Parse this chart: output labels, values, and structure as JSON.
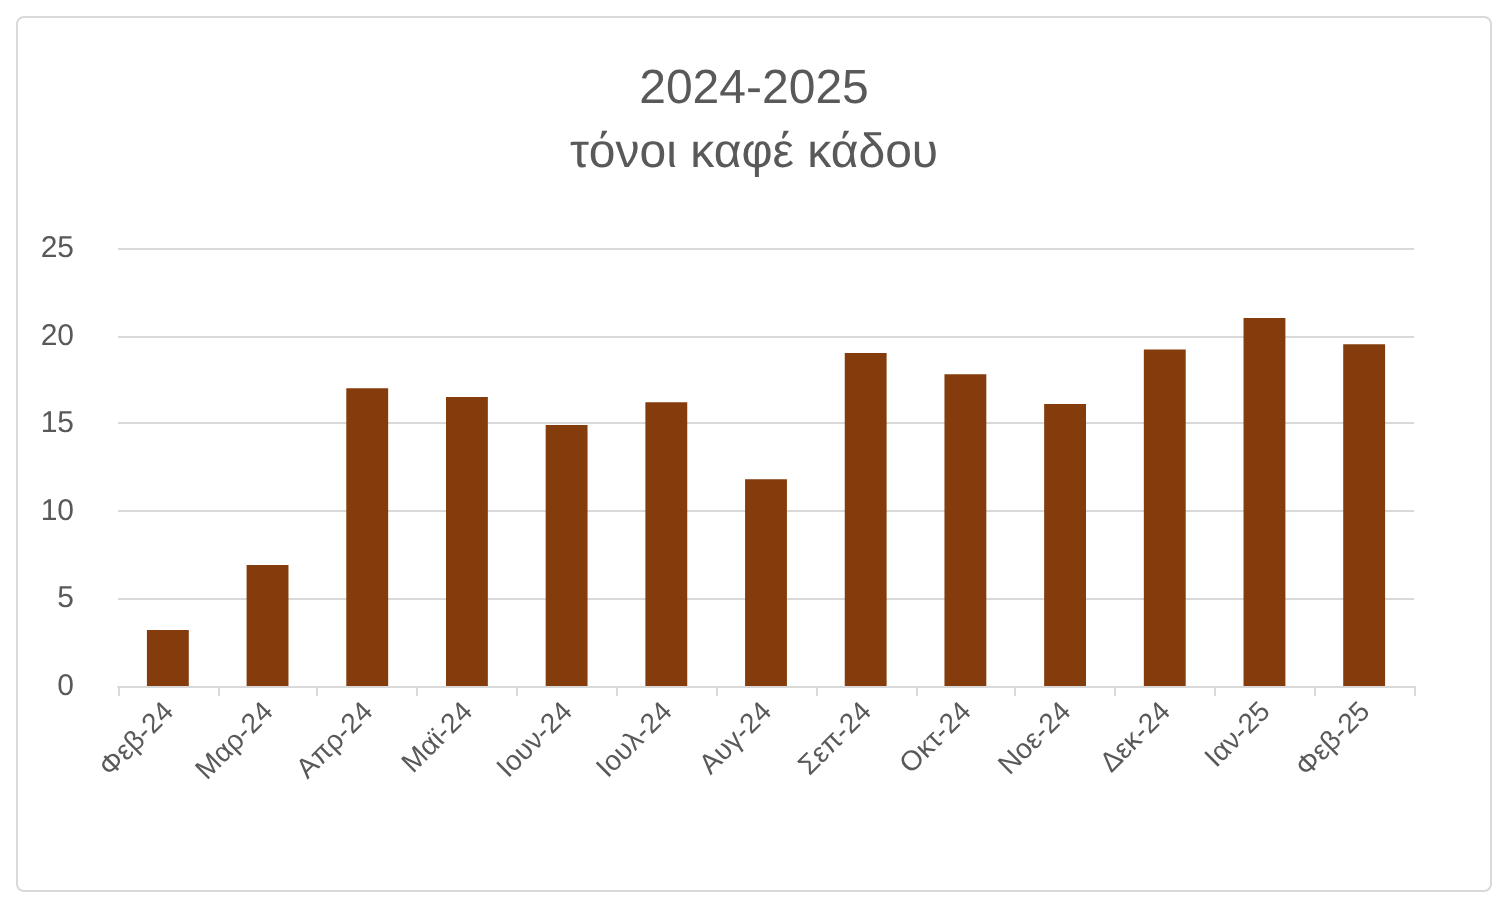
{
  "chart_data": {
    "type": "bar",
    "title": "2024-2025",
    "subtitle": "τόνοι καφέ κάδου",
    "categories": [
      "Φεβ-24",
      "Μαρ-24",
      "Απρ-24",
      "Μαϊ-24",
      "Ιουν-24",
      "Ιουλ-24",
      "Αυγ-24",
      "Σεπ-24",
      "Οκτ-24",
      "Νοε-24",
      "Δεκ-24",
      "Ιαν-25",
      "Φεβ-25"
    ],
    "values": [
      3.2,
      6.9,
      17.0,
      16.5,
      14.9,
      16.2,
      11.8,
      19.0,
      17.8,
      16.1,
      19.2,
      21.0,
      19.5
    ],
    "color": "#843c0c",
    "ylim": [
      0,
      25
    ],
    "yticks": [
      0,
      5,
      10,
      15,
      20,
      25
    ],
    "grid": "y"
  }
}
